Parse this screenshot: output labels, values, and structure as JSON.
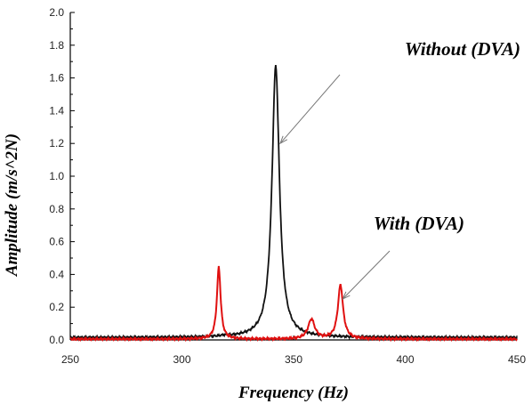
{
  "chart_data": {
    "type": "line",
    "xlabel": "Frequency (Hz)",
    "ylabel": "Amplitude (m/s^2N)",
    "xlim": [
      250,
      450
    ],
    "ylim": [
      0,
      2.0
    ],
    "x_ticks": [
      "250",
      "300",
      "350",
      "400",
      "450"
    ],
    "y_ticks": [
      "0.0",
      "0.2",
      "0.4",
      "0.6",
      "0.8",
      "1.0",
      "1.2",
      "1.4",
      "1.6",
      "1.8",
      "2.0"
    ],
    "grid": false,
    "colors": {
      "without": "#111111",
      "with": "#e01010"
    },
    "series": [
      {
        "key": "without",
        "peaks": [
          {
            "x": 342,
            "height": 1.66,
            "width": 2.0
          },
          {
            "x": 319,
            "height": 0.005,
            "width": 2.0
          }
        ],
        "baseline": 0.015
      },
      {
        "key": "with",
        "peaks": [
          {
            "x": 316.5,
            "height": 0.44,
            "width": 1.0
          },
          {
            "x": 371,
            "height": 0.33,
            "width": 1.4
          },
          {
            "x": 358,
            "height": 0.12,
            "width": 1.8
          }
        ],
        "baseline": 0.005
      }
    ],
    "annotations": [
      {
        "text": "Without (DVA)",
        "points_to": {
          "x": 344,
          "y": 1.2
        }
      },
      {
        "text": "With (DVA)",
        "points_to": {
          "x": 372,
          "y": 0.25
        }
      }
    ]
  }
}
